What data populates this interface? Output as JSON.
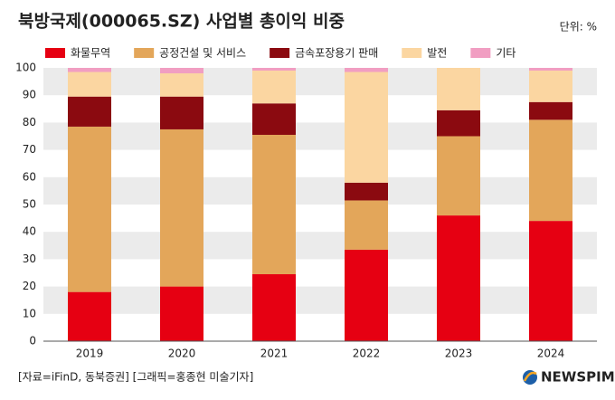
{
  "chart_data": {
    "type": "stacked-bar",
    "title": "북방국제(000065.SZ) 사업별 총이익 비중",
    "unit": "단위: %",
    "categories": [
      "2019",
      "2020",
      "2021",
      "2022",
      "2023",
      "2024"
    ],
    "series": [
      {
        "name": "화물무역",
        "color": "#e60012",
        "values": [
          18,
          20,
          24.5,
          33.5,
          46,
          44
        ]
      },
      {
        "name": "공정건설 및 서비스",
        "color": "#e3a65a",
        "values": [
          60.5,
          57.5,
          51,
          18,
          29,
          37
        ]
      },
      {
        "name": "금속포장용기 판매",
        "color": "#8b0a10",
        "values": [
          11,
          12,
          11.5,
          6.5,
          9.5,
          6.5
        ]
      },
      {
        "name": "발전",
        "color": "#fbd6a1",
        "values": [
          9,
          8.5,
          12,
          40.5,
          15.5,
          11.5
        ]
      },
      {
        "name": "기타",
        "color": "#f19ec2",
        "values": [
          1.5,
          2,
          1,
          1.5,
          0,
          1
        ]
      }
    ],
    "ylim": [
      0,
      100
    ],
    "yticks": [
      0,
      10,
      20,
      30,
      40,
      50,
      60,
      70,
      80,
      90,
      100
    ],
    "grid": "bands",
    "source": "[자료=iFinD, 동북증권] [그래픽=홍종현 미술기자]",
    "logo": "NEWSPIM"
  }
}
